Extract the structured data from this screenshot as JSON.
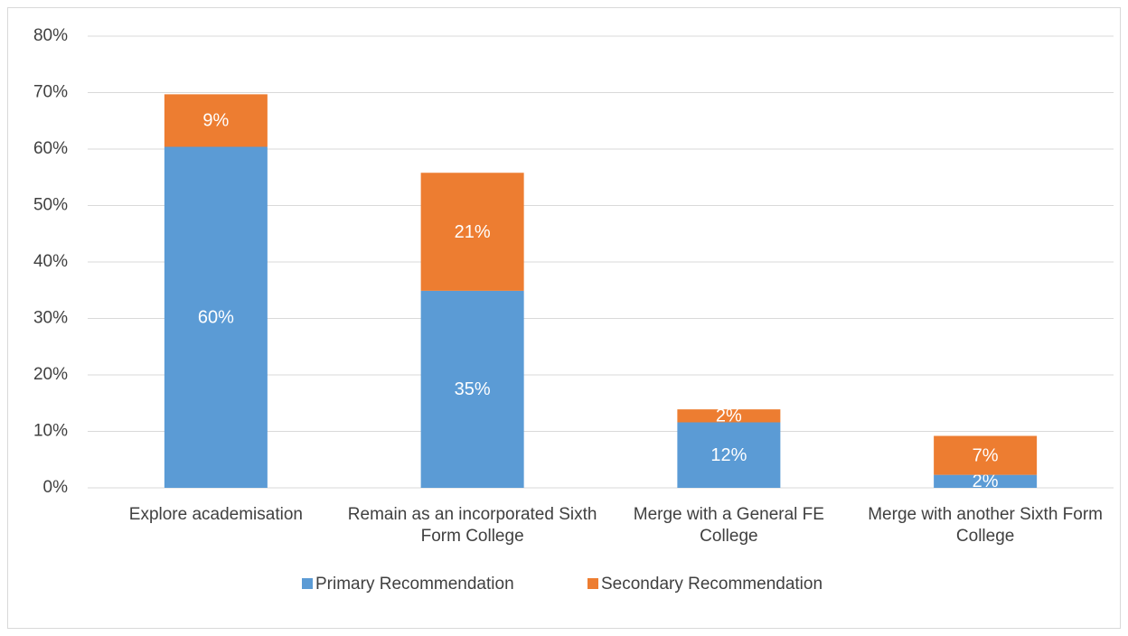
{
  "chart_data": {
    "type": "stacked_bar",
    "categories": [
      "Explore academisation",
      "Remain as an incorporated Sixth Form College",
      "Merge with a General FE College",
      "Merge with another Sixth Form College"
    ],
    "series": [
      {
        "name": "Primary Recommendation",
        "color": "#5b9bd5",
        "values": [
          60.4,
          34.9,
          11.6,
          2.3
        ],
        "value_labels": [
          "60%",
          "35%",
          "12%",
          "2%"
        ]
      },
      {
        "name": "Secondary Recommendation",
        "color": "#ed7d31",
        "values": [
          9.3,
          20.9,
          2.3,
          6.9
        ],
        "value_labels": [
          "9%",
          "21%",
          "2%",
          "7%"
        ]
      }
    ],
    "ylim": [
      0,
      80
    ],
    "yticks": [
      {
        "value": 0,
        "label": "0%"
      },
      {
        "value": 10,
        "label": "10%"
      },
      {
        "value": 20,
        "label": "20%"
      },
      {
        "value": 30,
        "label": "30%"
      },
      {
        "value": 40,
        "label": "40%"
      },
      {
        "value": 50,
        "label": "50%"
      },
      {
        "value": 60,
        "label": "60%"
      },
      {
        "value": 70,
        "label": "70%"
      },
      {
        "value": 80,
        "label": "80%"
      }
    ],
    "grid": true,
    "legend": "bottom"
  }
}
